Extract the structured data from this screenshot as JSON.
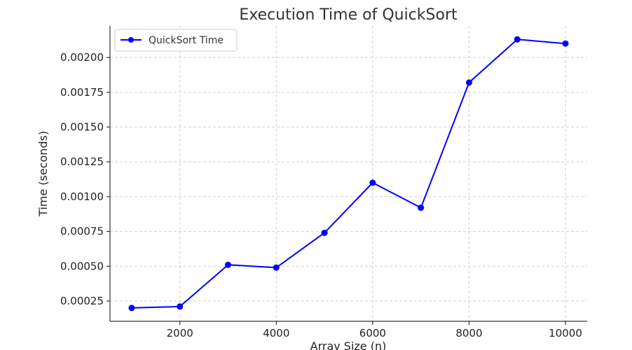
{
  "chart_data": {
    "type": "line",
    "title": "Execution Time of QuickSort",
    "xlabel": "Array Size (n)",
    "ylabel": "Time (seconds)",
    "x": [
      1000,
      2000,
      3000,
      4000,
      5000,
      6000,
      7000,
      8000,
      9000,
      10000
    ],
    "series": [
      {
        "name": "QuickSort Time",
        "values": [
          0.0002,
          0.00021,
          0.00051,
          0.00049,
          0.00074,
          0.0011,
          0.00092,
          0.00182,
          0.00213,
          0.0021
        ],
        "color": "#0000ff"
      }
    ],
    "x_ticks": [
      "2000",
      "4000",
      "6000",
      "8000",
      "10000"
    ],
    "y_ticks": [
      "0.00025",
      "0.00050",
      "0.00075",
      "0.00100",
      "0.00125",
      "0.00150",
      "0.00175",
      "0.00200"
    ],
    "xlim": [
      550,
      10450
    ],
    "ylim": [
      0.000104,
      0.002227
    ],
    "grid": true,
    "legend_position": "top-left",
    "marker": "circle"
  }
}
